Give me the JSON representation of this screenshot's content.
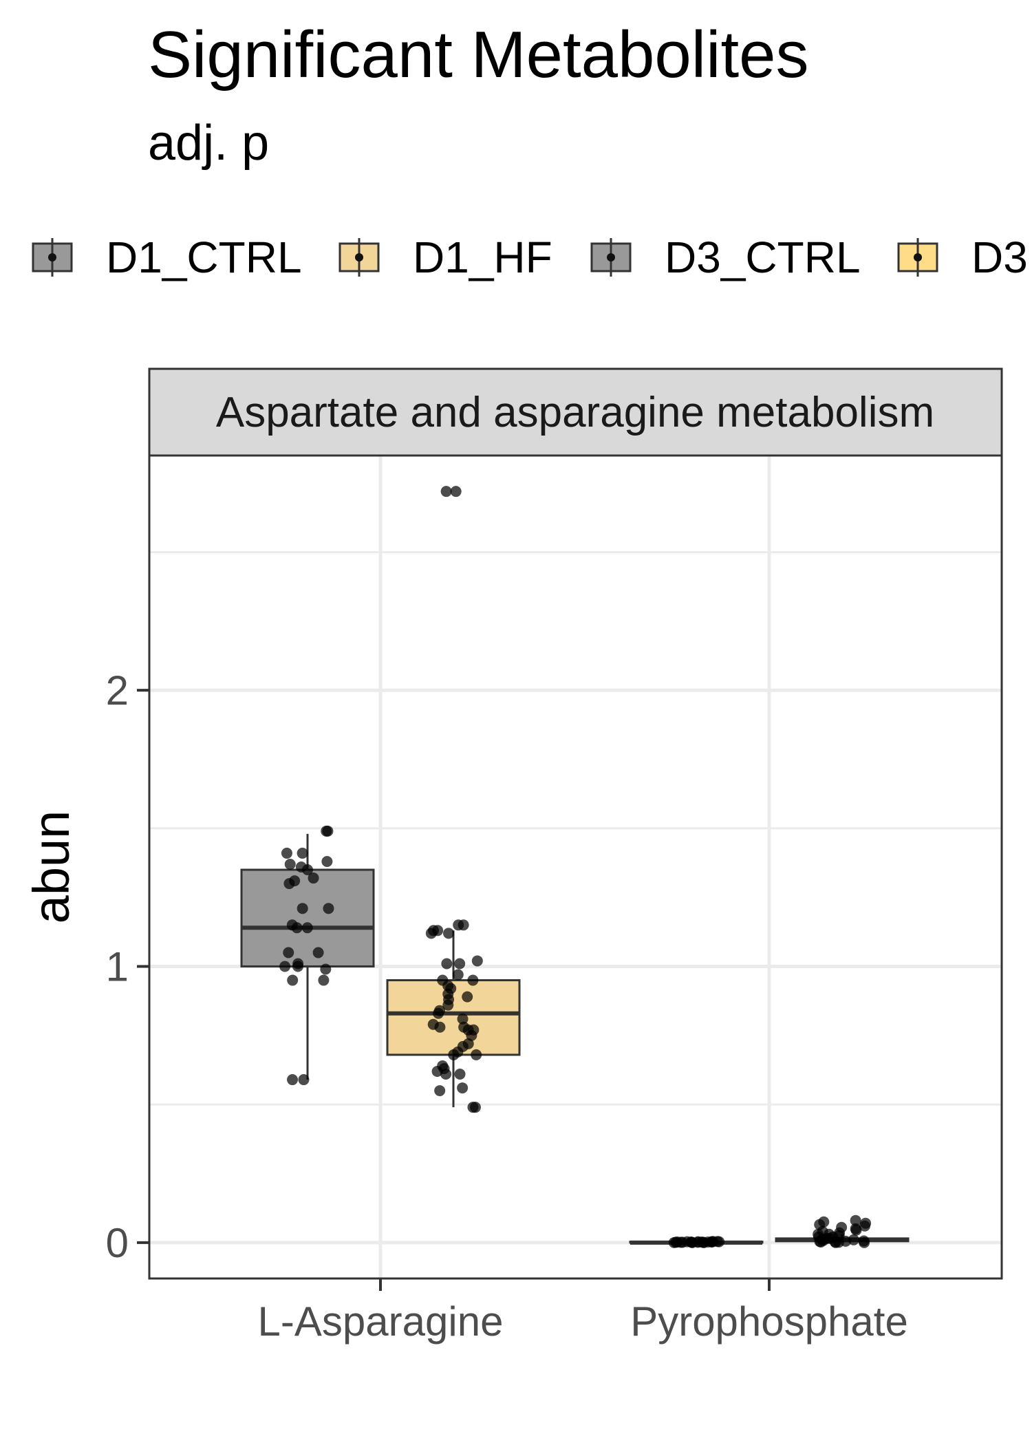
{
  "chart_data": {
    "type": "box",
    "title": "Significant Metabolites",
    "subtitle": "adj. p",
    "facet": "Aspartate and asparagine metabolism",
    "ylabel": "abun",
    "xlabel": "",
    "ylim": [
      -0.13,
      2.85
    ],
    "yticks": [
      0,
      1,
      2
    ],
    "grid": true,
    "legend_position": "top",
    "legend": [
      {
        "name": "D1_CTRL",
        "color": "#999999"
      },
      {
        "name": "D1_HF",
        "color": "#f2d598"
      },
      {
        "name": "D3_CTRL",
        "color": "#999999"
      },
      {
        "name": "D3",
        "color": "#ffdd88"
      }
    ],
    "categories": [
      "L-Asparagine",
      "Pyrophosphate"
    ],
    "series": [
      {
        "name": "D1_CTRL",
        "category": "L-Asparagine",
        "color": "#999999",
        "box": {
          "q1": 1.0,
          "median": 1.14,
          "q3": 1.35,
          "whisker_low": 0.59,
          "whisker_high": 1.48
        },
        "points": [
          1.49,
          1.49,
          1.41,
          1.41,
          1.38,
          1.37,
          1.36,
          1.35,
          1.32,
          1.31,
          1.3,
          1.21,
          1.21,
          1.15,
          1.14,
          1.14,
          1.05,
          1.05,
          1.01,
          1.0,
          1.0,
          0.99,
          0.95,
          0.95,
          0.59,
          0.59
        ]
      },
      {
        "name": "D1_HF",
        "category": "L-Asparagine",
        "color": "#f2d598",
        "box": {
          "q1": 0.68,
          "median": 0.83,
          "q3": 0.95,
          "whisker_low": 0.49,
          "whisker_high": 1.13
        },
        "points": [
          2.72,
          2.72,
          1.15,
          1.15,
          1.13,
          1.13,
          1.12,
          1.12,
          1.02,
          1.01,
          1.01,
          0.97,
          0.95,
          0.95,
          0.93,
          0.92,
          0.9,
          0.89,
          0.88,
          0.86,
          0.84,
          0.83,
          0.81,
          0.79,
          0.78,
          0.78,
          0.77,
          0.77,
          0.75,
          0.72,
          0.71,
          0.69,
          0.68,
          0.68,
          0.64,
          0.63,
          0.62,
          0.61,
          0.61,
          0.56,
          0.55,
          0.49,
          0.49
        ]
      },
      {
        "name": "D3_CTRL",
        "category": "Pyrophosphate",
        "color": "#999999",
        "box": {
          "q1": 0.0,
          "median": 0.0,
          "q3": 0.003,
          "whisker_low": 0.0,
          "whisker_high": 0.005
        },
        "points": [
          0.003,
          0.001,
          0.002,
          0.0,
          0.004,
          0.001,
          0.002,
          0.003,
          0.0,
          0.001,
          0.002,
          0.004,
          0.001,
          0.003,
          0.002,
          0.0,
          0.001,
          0.002,
          0.003,
          0.001
        ]
      },
      {
        "name": "D3",
        "category": "Pyrophosphate",
        "color": "#ffdd88",
        "box": {
          "q1": 0.005,
          "median": 0.01,
          "q3": 0.015,
          "whisker_low": 0.0,
          "whisker_high": 0.03
        },
        "points": [
          0.08,
          0.075,
          0.07,
          0.065,
          0.06,
          0.055,
          0.05,
          0.045,
          0.04,
          0.035,
          0.03,
          0.03,
          0.025,
          0.02,
          0.02,
          0.015,
          0.015,
          0.01,
          0.01,
          0.008,
          0.006,
          0.005,
          0.004,
          0.003,
          0.002,
          0.001,
          0.0,
          0.0
        ]
      }
    ]
  }
}
